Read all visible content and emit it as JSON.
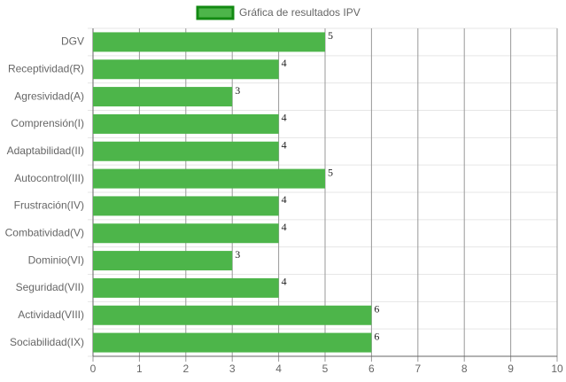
{
  "chart_data": {
    "type": "bar",
    "orientation": "horizontal",
    "categories": [
      "DGV",
      "Receptividad(R)",
      "Agresividad(A)",
      "Comprensión(I)",
      "Adaptabilidad(II)",
      "Autocontrol(III)",
      "Frustración(IV)",
      "Combatividad(V)",
      "Dominio(VI)",
      "Seguridad(VII)",
      "Actividad(VIII)",
      "Sociabilidad(IX)"
    ],
    "series": [
      {
        "name": "Gráfica de resultados IPV",
        "color": "#4db54a",
        "border_color": "#138a13",
        "values": [
          5,
          4,
          3,
          4,
          4,
          5,
          4,
          4,
          3,
          4,
          6,
          6
        ]
      }
    ],
    "xlim": [
      0,
      10
    ],
    "xticks": [
      0,
      1,
      2,
      3,
      4,
      5,
      6,
      7,
      8,
      9,
      10
    ],
    "grid": true
  }
}
